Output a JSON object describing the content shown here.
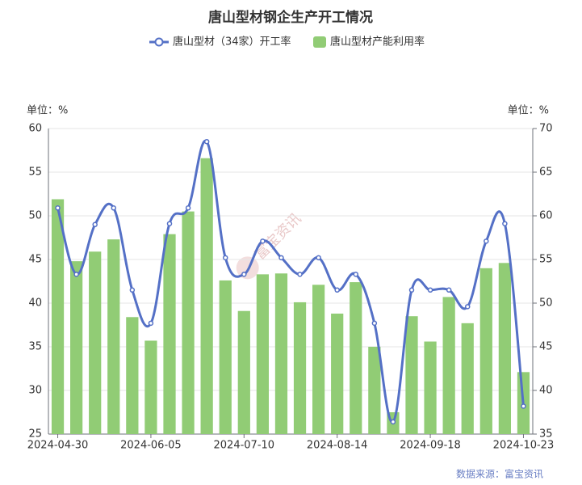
{
  "chart_data": {
    "type": "combo",
    "title": "唐山型材钢企生产开工情况",
    "y_unit": "单位：%",
    "y2_unit": "单位：%",
    "watermark": "富宝资讯",
    "source": "数据来源：富宝资讯",
    "categories": [
      "2024-04-30",
      null,
      null,
      null,
      null,
      "2024-06-05",
      null,
      null,
      null,
      null,
      "2024-07-10",
      null,
      null,
      null,
      null,
      "2024-08-14",
      null,
      null,
      null,
      null,
      "2024-09-18",
      null,
      null,
      null,
      null,
      "2024-10-23"
    ],
    "ylim": [
      25,
      60
    ],
    "yticks": [
      25,
      30,
      35,
      40,
      45,
      50,
      55,
      60
    ],
    "y2lim": [
      35,
      70
    ],
    "y2ticks": [
      35,
      40,
      45,
      50,
      55,
      60,
      65,
      70
    ],
    "grid": true,
    "series": [
      {
        "name": "唐山型材（34家）开工率",
        "type": "line",
        "color": "#5470c6",
        "values": [
          50.9,
          43.3,
          49.0,
          50.9,
          41.5,
          37.7,
          49.1,
          50.9,
          58.5,
          45.2,
          43.3,
          47.1,
          45.2,
          43.3,
          45.2,
          41.5,
          43.3,
          37.7,
          26.4,
          41.5,
          41.5,
          41.5,
          39.6,
          47.1,
          49.1,
          28.2
        ]
      },
      {
        "name": "唐山型材产能利用率",
        "type": "bar",
        "color": "#91cc75",
        "axis": "y2",
        "values": [
          61.9,
          54.8,
          55.9,
          57.3,
          48.4,
          45.7,
          57.9,
          60.5,
          66.6,
          52.6,
          49.1,
          53.3,
          53.4,
          50.1,
          52.1,
          48.8,
          52.4,
          45.0,
          37.5,
          48.5,
          45.6,
          50.7,
          47.7,
          54.0,
          54.6,
          42.1
        ]
      }
    ]
  }
}
